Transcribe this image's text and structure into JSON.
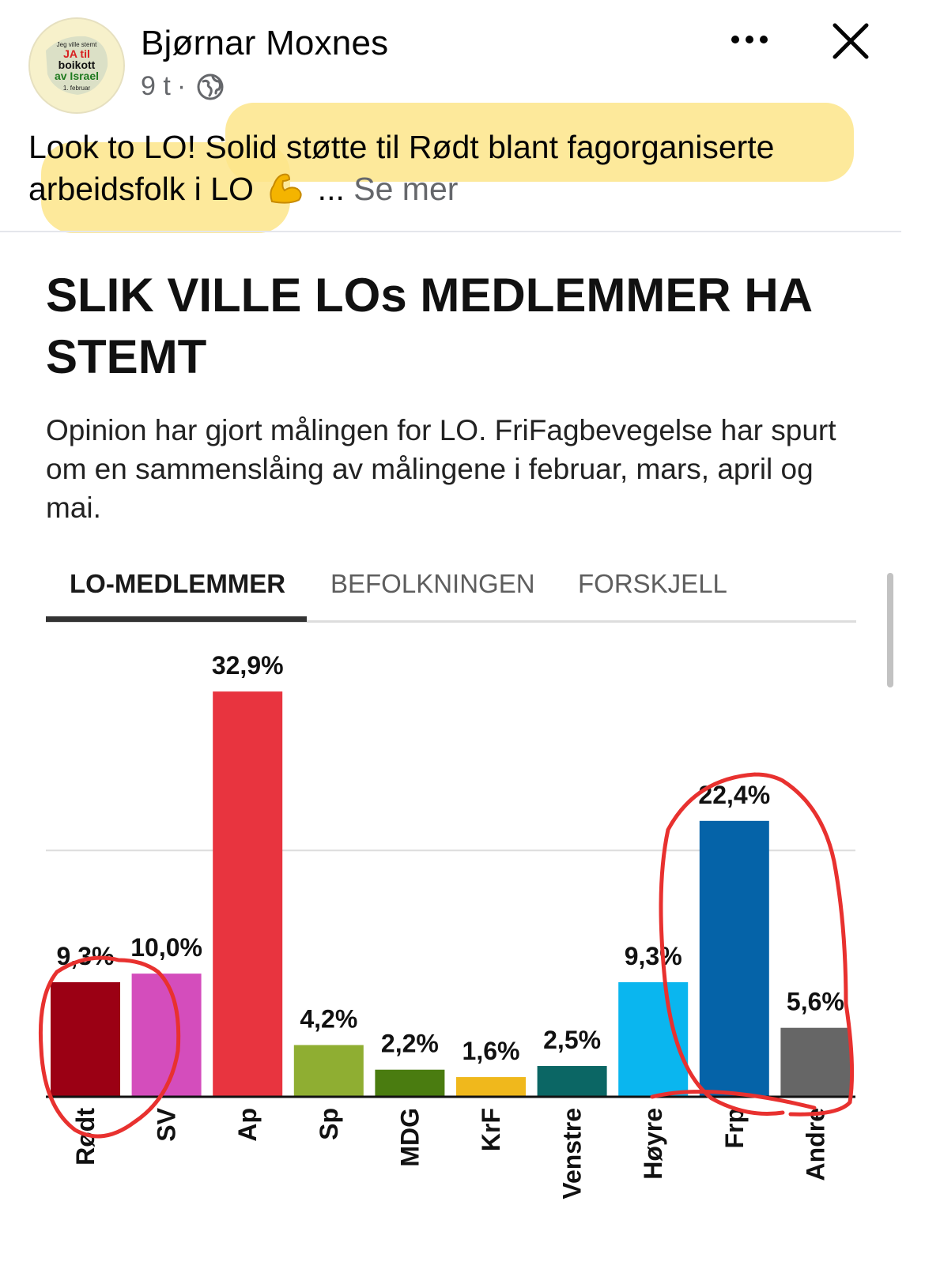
{
  "post": {
    "author": "Bjørnar Moxnes",
    "time": "9 t",
    "separator": "·",
    "avatar_text": {
      "line1": "Jeg ville stemt",
      "line2": "JA til",
      "line3": "boikott",
      "line4": "av Israel",
      "line5": "1. februar"
    },
    "text_part1": "Look to LO! Solid støtte til Rødt blant fagorganiserte arbeidsfolk i LO",
    "ellipsis": "...",
    "see_more": "Se mer"
  },
  "card": {
    "title": "SLIK VILLE LOs MEDLEMMER HA STEMT",
    "description": "Opinion har gjort målingen for LO. FriFagbevegelse har spurt om en sammenslåing av målingene i februar, mars, april og mai.",
    "tabs": [
      "LO-MEDLEMMER",
      "BEFOLKNINGEN",
      "FORSKJELL"
    ]
  },
  "colors": {
    "highlight": "#fde58a",
    "annotation": "#e8312f"
  },
  "icons": [
    "more-icon",
    "close-icon",
    "globe-icon",
    "muscle-emoji-icon"
  ],
  "chart_data": {
    "type": "bar",
    "title": "SLIK VILLE LOs MEDLEMMER HA STEMT",
    "categories": [
      "Rødt",
      "SV",
      "Ap",
      "Sp",
      "MDG",
      "KrF",
      "Venstre",
      "Høyre",
      "Frp",
      "Andre"
    ],
    "values": [
      9.3,
      10.0,
      32.9,
      4.2,
      2.2,
      1.6,
      2.5,
      9.3,
      22.4,
      5.6
    ],
    "value_labels": [
      "9,3%",
      "10,0%",
      "32,9%",
      "4,2%",
      "2,2%",
      "1,6%",
      "2,5%",
      "9,3%",
      "22,4%",
      "5,6%"
    ],
    "colors": [
      "#9b0014",
      "#d44dbc",
      "#e8343f",
      "#8fae32",
      "#4a7c10",
      "#f0b81c",
      "#0b6664",
      "#0ab6ef",
      "#0563a8",
      "#666666"
    ],
    "ylim": [
      0,
      34
    ],
    "gridline": 20,
    "grid": true,
    "xlabel": "",
    "ylabel": ""
  }
}
